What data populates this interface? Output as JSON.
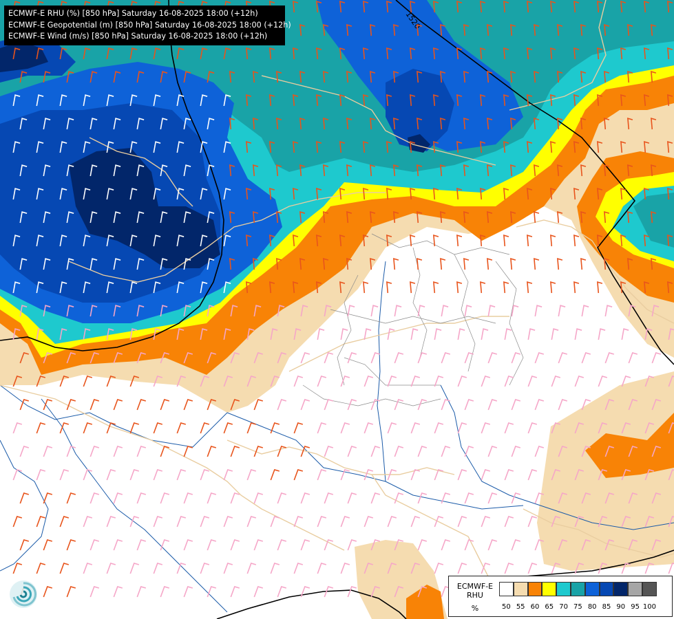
{
  "header": {
    "lines": [
      "ECMWF-E RHU (%) [850 hPa] Saturday 16-08-2025 18:00 (+12h)",
      "ECMWF-E Geopotential (m) [850 hPa] Saturday 16-08-2025 18:00 (+12h)",
      "ECMWF-E Wind (m/s) [850 hPa] Saturday 16-08-2025 18:00 (+12h)"
    ]
  },
  "contour_label": "1520",
  "legend": {
    "name_line1": "ECMWF-E",
    "name_line2": "RHU",
    "unit": "%",
    "ticks": [
      "50",
      "55",
      "60",
      "65",
      "70",
      "75",
      "80",
      "85",
      "90",
      "95",
      "100"
    ],
    "colors": [
      "#ffffff",
      "#f5dcb0",
      "#f88306",
      "#ffff00",
      "#1ec9ce",
      "#19a3a7",
      "#0e62d8",
      "#0648b3",
      "#02266a",
      "#a6a6a6",
      "#555555"
    ]
  },
  "colors": {
    "tan": "#f5dcb0",
    "orange": "#f88306",
    "yellow": "#ffff00",
    "cyan": "#1ec9ce",
    "teal": "#19a3a7",
    "blue": "#0e62d8",
    "darkblue": "#0648b3",
    "navy": "#02266a",
    "barb_light": "#f5a6c8",
    "barb_strong": "#e8541c"
  },
  "logo_icon": "ecmwf-swirl-logo-icon"
}
